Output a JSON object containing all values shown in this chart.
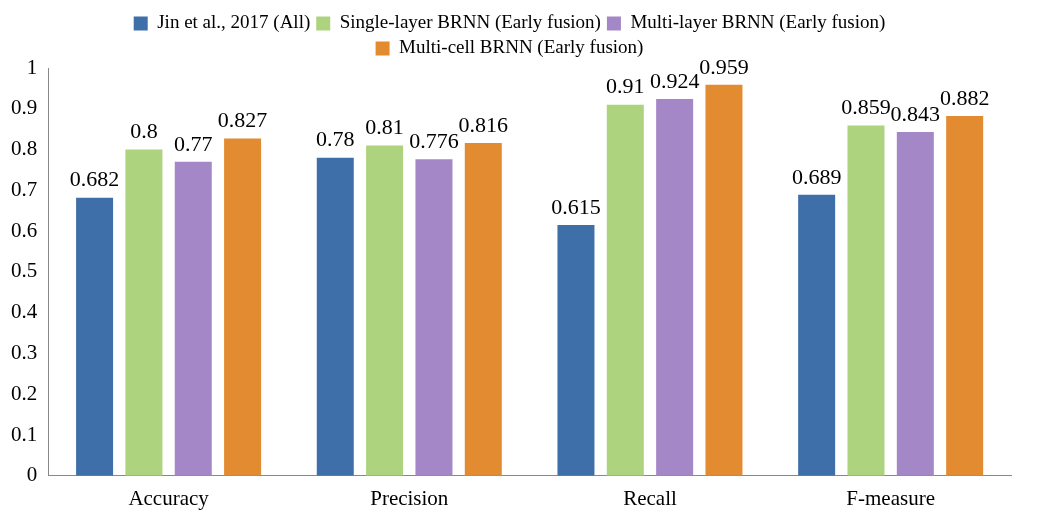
{
  "chart_data": {
    "type": "bar",
    "categories": [
      "Accuracy",
      "Precision",
      "Recall",
      "F-measure"
    ],
    "series": [
      {
        "name": "Jin et al., 2017 (All)",
        "color": "#3f6fa8",
        "values": [
          0.682,
          0.78,
          0.615,
          0.689
        ]
      },
      {
        "name": "Single-layer BRNN (Early fusion)",
        "color": "#aed37e",
        "values": [
          0.8,
          0.81,
          0.91,
          0.859
        ]
      },
      {
        "name": "Multi-layer BRNN (Early fusion)",
        "color": "#a487c6",
        "values": [
          0.77,
          0.776,
          0.924,
          0.843
        ]
      },
      {
        "name": "Multi-cell BRNN (Early fusion)",
        "color": "#e38b30",
        "values": [
          0.827,
          0.816,
          0.959,
          0.882
        ]
      }
    ],
    "ylim": [
      0,
      1
    ],
    "yticks": [
      0,
      0.1,
      0.2,
      0.3,
      0.4,
      0.5,
      0.6,
      0.7,
      0.8,
      0.9,
      1
    ],
    "grid": false,
    "legend": "top",
    "data_labels": true
  }
}
